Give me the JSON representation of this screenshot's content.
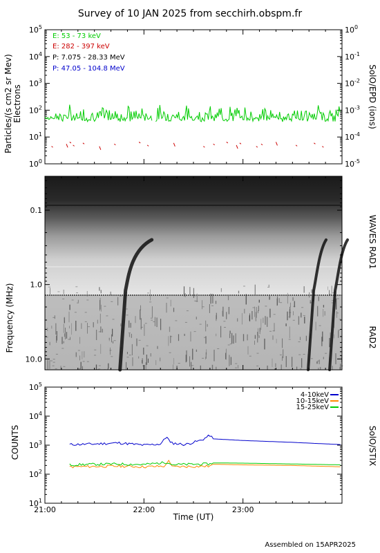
{
  "title": "Survey of 10 JAN 2025 from secchirh.obspm.fr",
  "footer": "Assembled on 15APR2025",
  "colors": {
    "electron_low": "#00cc00",
    "electron_high": "#cc0000",
    "proton_low": "#000000",
    "proton_high": "#0000cc",
    "stix_4_10": "#0000cc",
    "stix_10_15": "#ff8800",
    "stix_15_25": "#00cc00"
  },
  "chart_data": [
    {
      "type": "line",
      "title": "",
      "ylabel": "Particles/(s cm2 sr Mev)",
      "ylabel2": "Electrons",
      "right_label": "SolO/EPD (ions)",
      "log_y": true,
      "ylim": [
        1,
        100000
      ],
      "y_tick_labels": [
        "10^0",
        "10^1",
        "10^2",
        "10^3",
        "10^4",
        "10^5"
      ],
      "right_ylim": [
        1e-05,
        1
      ],
      "right_tick_labels": [
        "10^-5",
        "10^-4",
        "10^-3",
        "10^-2",
        "10^-1",
        "10^0"
      ],
      "xlim": [
        "21:00",
        "24:00"
      ],
      "legend": [
        {
          "label": "E: 53 - 73 keV",
          "color": "#00cc00"
        },
        {
          "label": "E: 282 - 397 keV",
          "color": "#cc0000"
        },
        {
          "label": "P: 7.075 - 28.33 MeV",
          "color": "#000000"
        },
        {
          "label": "P: 47.05 - 104.8 MeV",
          "color": "#0000cc"
        }
      ],
      "legend_position": "top-left",
      "series": [
        {
          "name": "E: 53 - 73 keV",
          "approx_level": 60,
          "range": [
            25,
            160
          ],
          "x_start": "21:00",
          "x_end": "24:00",
          "gap": [
            "22:05",
            "22:07"
          ]
        },
        {
          "name": "E: 282 - 397 keV",
          "approx_level": 5,
          "note_sparse": true
        }
      ]
    },
    {
      "type": "heatmap",
      "title": "",
      "ylabel": "Frequency (MHz)",
      "right_labels": [
        "WAVES RAD1",
        "RAD2"
      ],
      "log_y": true,
      "y_tick_labels": [
        "0.1",
        "1.0",
        "10.0"
      ],
      "xlim": [
        "21:00",
        "24:00"
      ],
      "features": [
        {
          "kind": "type III burst",
          "time": "21:48"
        },
        {
          "kind": "type III burst",
          "time": "23:42"
        },
        {
          "kind": "type III burst",
          "time": "23:55"
        }
      ]
    },
    {
      "type": "line",
      "title": "",
      "ylabel": "COUNTS",
      "right_label": "SolO/STIX",
      "log_y": true,
      "ylim": [
        10,
        100000
      ],
      "y_tick_labels": [
        "10^1",
        "10^2",
        "10^3",
        "10^4",
        "10^5"
      ],
      "xlabel": "Time (UT)",
      "x_tick_labels": [
        "21:00",
        "22:00",
        "23:00"
      ],
      "xlim": [
        "21:00",
        "24:00"
      ],
      "legend_position": "top-right",
      "series": [
        {
          "name": "4-10keV",
          "color": "#0000cc",
          "points": [
            [
              "21:15",
              1050
            ],
            [
              "21:30",
              1100
            ],
            [
              "21:45",
              1200
            ],
            [
              "22:00",
              1000
            ],
            [
              "22:10",
              1100
            ],
            [
              "22:14",
              2000
            ],
            [
              "22:16",
              1200
            ],
            [
              "22:25",
              1050
            ],
            [
              "22:35",
              1500
            ],
            [
              "22:40",
              2200
            ],
            [
              "22:42",
              1650
            ],
            [
              "23:00",
              1450
            ],
            [
              "23:30",
              1250
            ],
            [
              "23:59",
              1050
            ]
          ]
        },
        {
          "name": "10-15keV",
          "color": "#ff8800",
          "points": [
            [
              "21:15",
              180
            ],
            [
              "21:30",
              185
            ],
            [
              "21:45",
              190
            ],
            [
              "22:00",
              180
            ],
            [
              "22:13",
              190
            ],
            [
              "22:15",
              320
            ],
            [
              "22:17",
              180
            ],
            [
              "22:40",
              190
            ],
            [
              "22:42",
              220
            ],
            [
              "23:00",
              210
            ],
            [
              "23:30",
              200
            ],
            [
              "23:59",
              180
            ]
          ]
        },
        {
          "name": "15-25keV",
          "color": "#00cc00",
          "points": [
            [
              "21:15",
              210
            ],
            [
              "21:30",
              220
            ],
            [
              "21:45",
              225
            ],
            [
              "22:00",
              215
            ],
            [
              "22:15",
              260
            ],
            [
              "22:17",
              215
            ],
            [
              "22:40",
              225
            ],
            [
              "22:42",
              245
            ],
            [
              "23:00",
              240
            ],
            [
              "23:30",
              225
            ],
            [
              "23:59",
              210
            ]
          ]
        }
      ]
    }
  ]
}
